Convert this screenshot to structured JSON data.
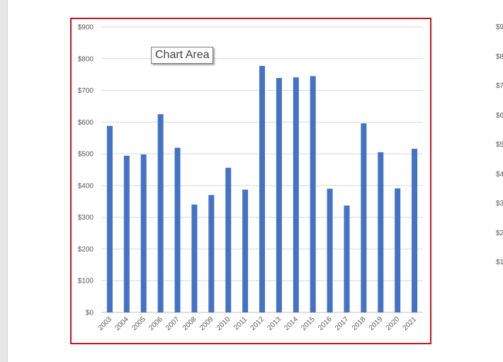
{
  "tooltip": {
    "label": "Chart Area"
  },
  "chart_data": {
    "type": "bar",
    "categories": [
      "2003",
      "2004",
      "2005",
      "2006",
      "2007",
      "2008",
      "2009",
      "2010",
      "2011",
      "2012",
      "2013",
      "2014",
      "2015",
      "2016",
      "2017",
      "2018",
      "2019",
      "2020",
      "2021"
    ],
    "values": [
      588,
      494,
      498,
      625,
      519,
      340,
      370,
      456,
      387,
      777,
      739,
      741,
      745,
      390,
      337,
      596,
      505,
      391,
      516
    ],
    "yticks": [
      "$0",
      "$100",
      "$200",
      "$300",
      "$400",
      "$500",
      "$600",
      "$700",
      "$800",
      "$900"
    ],
    "ylim": [
      0,
      900
    ],
    "grid": true,
    "bar_color": "#4472c4",
    "title": "",
    "xlabel": "",
    "ylabel": ""
  },
  "adjacent_chart": {
    "tick_labels": [
      "$9",
      "$8",
      "$7",
      "$6",
      "$5",
      "$4",
      "$3",
      "$2",
      "$1"
    ]
  },
  "colors": {
    "selection_border": "#c0181f",
    "gridline": "#d9d9d9",
    "axis_text": "#595959"
  }
}
